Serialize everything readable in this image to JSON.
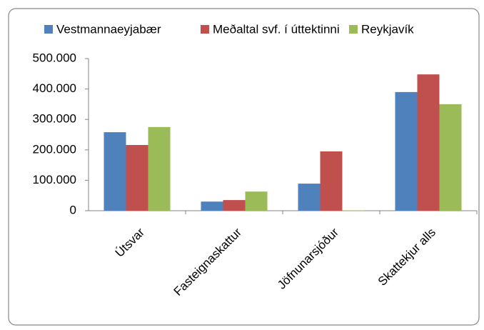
{
  "chart_data": {
    "type": "bar",
    "categories": [
      "Útsvar",
      "Fasteignaskattur",
      "Jöfnunarsjóður",
      "Skattekjur alls"
    ],
    "series": [
      {
        "name": "Vestmannaeyjabær",
        "color": "#4f81bd",
        "values": [
          258000,
          30000,
          89000,
          390000
        ]
      },
      {
        "name": "Meðaltal svf. í úttektinni",
        "color": "#c0504d",
        "values": [
          216000,
          35000,
          195000,
          448000
        ]
      },
      {
        "name": "Reykjavík",
        "color": "#9bbb59",
        "values": [
          275000,
          63000,
          1000,
          350000
        ]
      }
    ],
    "ylim": [
      0,
      500000
    ],
    "yticks": [
      0,
      {
        "value": 100000,
        "label": "100.000"
      },
      {
        "value": 200000,
        "label": "200.000"
      },
      {
        "value": 300000,
        "label": "300.000"
      },
      {
        "value": 400000,
        "label": "400.000"
      },
      {
        "value": 500000,
        "label": "500.000"
      }
    ],
    "legend": "top"
  }
}
